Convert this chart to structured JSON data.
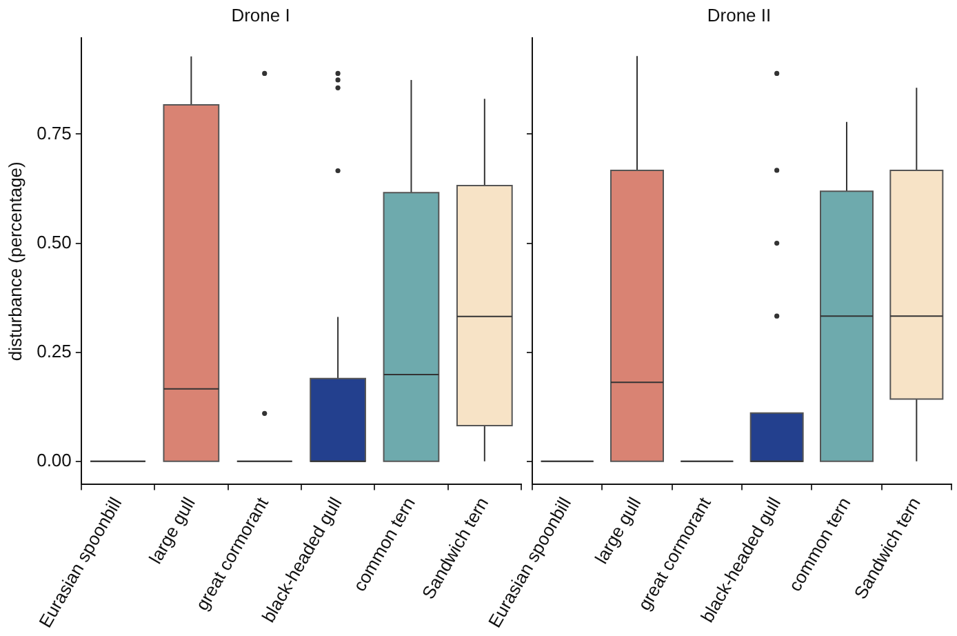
{
  "chart_data": [
    {
      "type": "box",
      "title": "Drone I",
      "ylabel": "disturbance (percentage)",
      "categories": [
        "Eurasian spoonbill",
        "large gull",
        "great cormorant",
        "black-headed gull",
        "common tern",
        "Sandwich tern"
      ],
      "colors": [
        "#555555",
        "#d98373",
        "#555555",
        "#23408e",
        "#6eaaad",
        "#f7e3c6"
      ],
      "boxes": [
        {
          "low": 0,
          "q1": 0,
          "median": 0,
          "q3": 0,
          "high": 0
        },
        {
          "low": 0,
          "q1": 0,
          "median": 0.166,
          "q3": 0.817,
          "high": 0.928
        },
        {
          "low": 0,
          "q1": 0,
          "median": 0,
          "q3": 0,
          "high": 0,
          "outliers": [
            0.889,
            0.11
          ]
        },
        {
          "low": 0,
          "q1": 0,
          "median": 0,
          "q3": 0.19,
          "high": 0.331,
          "outliers": [
            0.889,
            0.874,
            0.856,
            0.666
          ]
        },
        {
          "low": 0,
          "q1": 0,
          "median": 0.199,
          "q3": 0.616,
          "high": 0.874
        },
        {
          "low": 0,
          "q1": 0.082,
          "median": 0.332,
          "q3": 0.632,
          "high": 0.831
        }
      ],
      "ylim": [
        -0.053,
        0.97
      ],
      "yticks": [
        {
          "value": 0,
          "label": "0.00"
        },
        {
          "value": 0.25,
          "label": "0.25"
        },
        {
          "value": 0.5,
          "label": "0.50"
        },
        {
          "value": 0.75,
          "label": "0.75"
        }
      ],
      "grid": false
    },
    {
      "type": "box",
      "title": "Drone II",
      "categories": [
        "Eurasian spoonbill",
        "large gull",
        "great cormorant",
        "black-headed gull",
        "common tern",
        "Sandwich tern"
      ],
      "colors": [
        "#555555",
        "#d98373",
        "#555555",
        "#23408e",
        "#6eaaad",
        "#f7e3c6"
      ],
      "boxes": [
        {
          "low": 0,
          "q1": 0,
          "median": 0,
          "q3": 0,
          "high": 0
        },
        {
          "low": 0,
          "q1": 0,
          "median": 0.181,
          "q3": 0.667,
          "high": 0.929
        },
        {
          "low": 0,
          "q1": 0,
          "median": 0,
          "q3": 0,
          "high": 0
        },
        {
          "low": 0,
          "q1": 0,
          "median": 0,
          "q3": 0.111,
          "high": 0.111,
          "outliers": [
            0.889,
            0.667,
            0.5,
            0.333
          ]
        },
        {
          "low": 0,
          "q1": 0,
          "median": 0.333,
          "q3": 0.619,
          "high": 0.778
        },
        {
          "low": 0,
          "q1": 0.143,
          "median": 0.333,
          "q3": 0.667,
          "high": 0.856
        }
      ],
      "ylim": [
        -0.053,
        0.97
      ],
      "yticks": [
        {
          "value": 0,
          "label": null
        },
        {
          "value": 0.25,
          "label": null
        },
        {
          "value": 0.5,
          "label": null
        },
        {
          "value": 0.75,
          "label": null
        }
      ],
      "grid": false,
      "tick_labels": "x"
    }
  ]
}
